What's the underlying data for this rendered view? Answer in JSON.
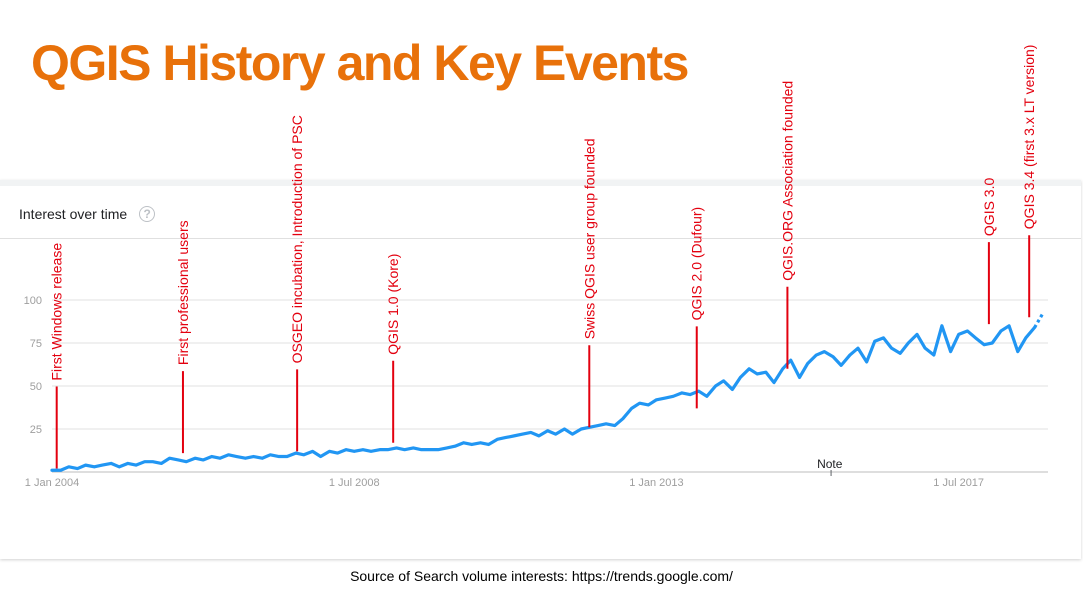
{
  "title": "QGIS History and Key Events",
  "card": {
    "title": "Interest over time",
    "help_icon": "help-circle-icon"
  },
  "footer": "Source of Search volume interests: https://trends.google.com/",
  "colors": {
    "title": "#e8710a",
    "line": "#2196f3",
    "annotation": "#e3000f",
    "grid": "#e0e0e0",
    "axis_text": "#9e9e9e"
  },
  "chart_data": {
    "type": "line",
    "title": "Interest over time",
    "xlabel": "",
    "ylabel": "",
    "ylim": [
      0,
      100
    ],
    "yticks": [
      25,
      50,
      75,
      100
    ],
    "xlim": [
      2004.0,
      2018.83
    ],
    "xticks": [
      {
        "x": 2004.0,
        "label": "1 Jan 2004"
      },
      {
        "x": 2008.5,
        "label": "1 Jul 2008"
      },
      {
        "x": 2013.0,
        "label": "1 Jan 2013"
      },
      {
        "x": 2017.5,
        "label": "1 Jul 2017"
      }
    ],
    "grid": true,
    "note": "Note",
    "series": [
      {
        "x": [
          2004.0,
          2004.13,
          2004.25,
          2004.38,
          2004.5,
          2004.63,
          2004.75,
          2004.88,
          2005.0,
          2005.13,
          2005.25,
          2005.38,
          2005.5,
          2005.63,
          2005.75,
          2005.88,
          2006.0,
          2006.13,
          2006.25,
          2006.38,
          2006.5,
          2006.63,
          2006.75,
          2006.88,
          2007.0,
          2007.13,
          2007.25,
          2007.38,
          2007.5,
          2007.63,
          2007.75,
          2007.88,
          2008.0,
          2008.13,
          2008.25,
          2008.38,
          2008.5,
          2008.63,
          2008.75,
          2008.88,
          2009.0,
          2009.13,
          2009.25,
          2009.38,
          2009.5,
          2009.63,
          2009.75,
          2009.88,
          2010.0,
          2010.13,
          2010.25,
          2010.38,
          2010.5,
          2010.63,
          2010.75,
          2010.88,
          2011.0,
          2011.13,
          2011.25,
          2011.38,
          2011.5,
          2011.63,
          2011.75,
          2011.88,
          2012.0,
          2012.13,
          2012.25,
          2012.38,
          2012.5,
          2012.63,
          2012.75,
          2012.88,
          2013.0,
          2013.13,
          2013.25,
          2013.38,
          2013.5,
          2013.63,
          2013.75,
          2013.88,
          2014.0,
          2014.13,
          2014.25,
          2014.38,
          2014.5,
          2014.63,
          2014.75,
          2014.88,
          2015.0,
          2015.13,
          2015.25,
          2015.38,
          2015.5,
          2015.63,
          2015.75,
          2015.88,
          2016.0,
          2016.13,
          2016.25,
          2016.38,
          2016.5,
          2016.63,
          2016.75,
          2016.88,
          2017.0,
          2017.13,
          2017.25,
          2017.38,
          2017.5,
          2017.63,
          2017.75,
          2017.88,
          2018.0,
          2018.13,
          2018.25,
          2018.38,
          2018.5,
          2018.63,
          2018.75
        ],
        "values": [
          1,
          1,
          3,
          2,
          4,
          3,
          4,
          5,
          3,
          5,
          4,
          6,
          6,
          5,
          8,
          7,
          6,
          8,
          7,
          9,
          8,
          10,
          9,
          8,
          9,
          8,
          10,
          9,
          9,
          11,
          10,
          12,
          9,
          12,
          11,
          13,
          12,
          13,
          12,
          13,
          13,
          14,
          13,
          14,
          13,
          13,
          13,
          14,
          15,
          17,
          16,
          17,
          16,
          19,
          20,
          21,
          22,
          23,
          21,
          24,
          22,
          25,
          22,
          25,
          26,
          27,
          28,
          27,
          31,
          37,
          40,
          39,
          42,
          43,
          44,
          46,
          45,
          47,
          44,
          50,
          53,
          48,
          55,
          60,
          57,
          58,
          52,
          60,
          65,
          55,
          63,
          68,
          70,
          67,
          62,
          68,
          72,
          64,
          76,
          78,
          72,
          69,
          75,
          80,
          72,
          68,
          85,
          70,
          80,
          82,
          78,
          74,
          75,
          82,
          85,
          70,
          78,
          84,
          92
        ]
      }
    ],
    "annotations": [
      {
        "x": 2004.07,
        "value": 2,
        "label": "First Windows release"
      },
      {
        "x": 2005.95,
        "value": 11,
        "label": "First professional users"
      },
      {
        "x": 2007.65,
        "value": 12,
        "label": "OSGEO incubation, Introduction of PSC"
      },
      {
        "x": 2009.08,
        "value": 17,
        "label": "QGIS 1.0 (Kore)"
      },
      {
        "x": 2012.0,
        "value": 26,
        "label": "Swiss QGIS user group founded"
      },
      {
        "x": 2013.6,
        "value": 37,
        "label": "QGIS 2.0 (Dufour)"
      },
      {
        "x": 2014.95,
        "value": 60,
        "label": "QGIS.ORG Association founded"
      },
      {
        "x": 2017.95,
        "value": 86,
        "label": "QGIS 3.0"
      },
      {
        "x": 2018.55,
        "value": 90,
        "label": "QGIS 3.4 (first 3.x LT version)"
      }
    ]
  }
}
